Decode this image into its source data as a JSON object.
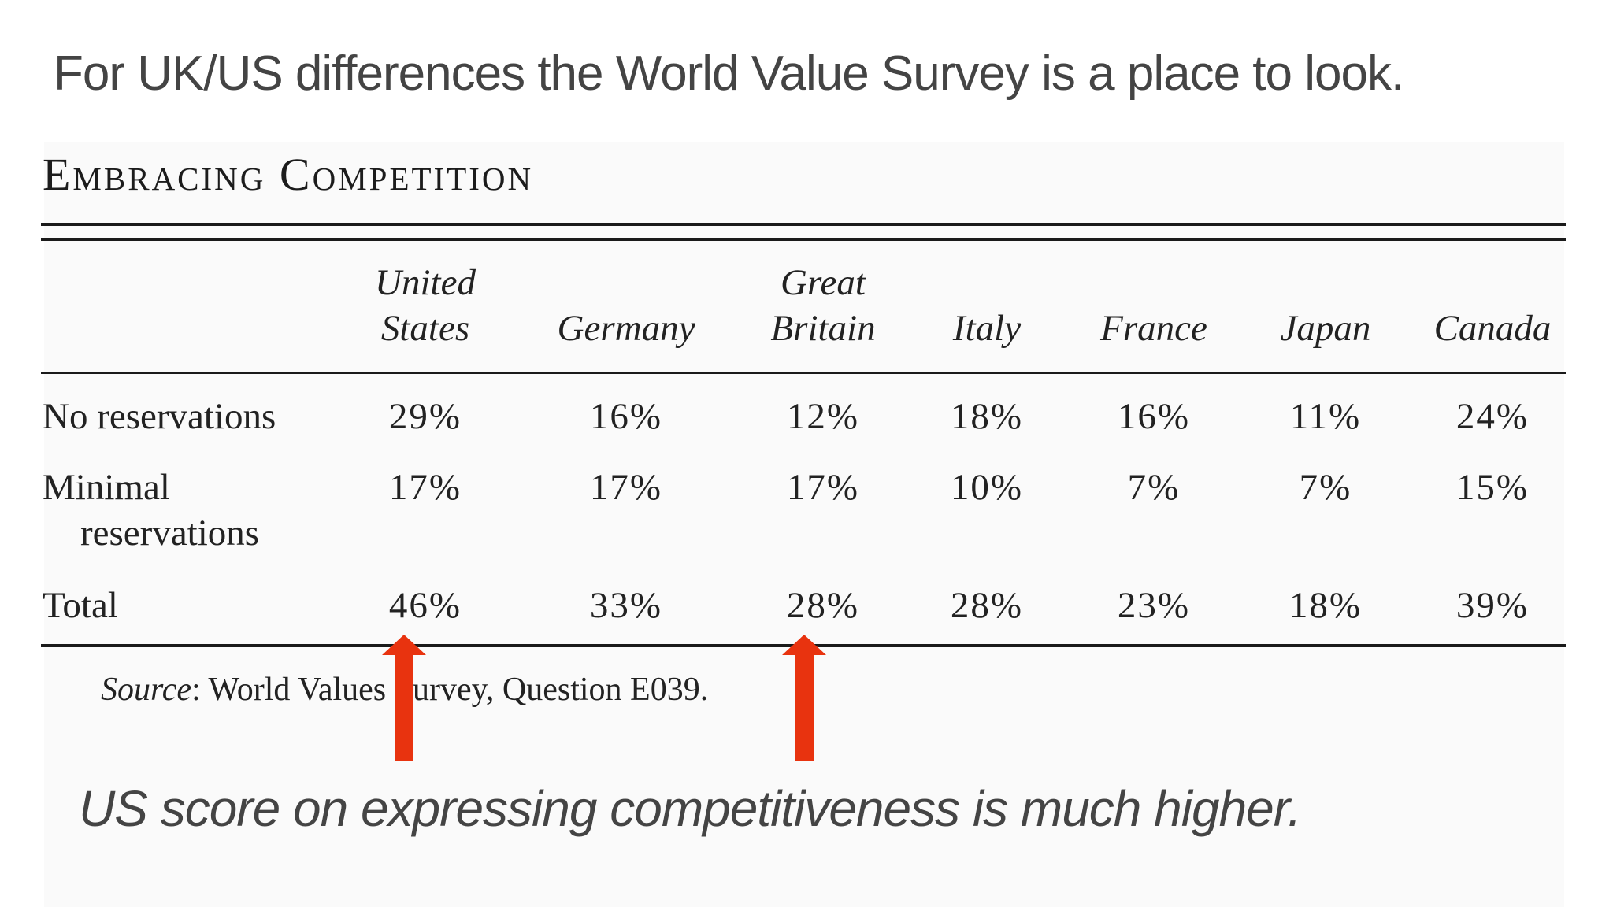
{
  "slide": {
    "title": "For UK/US differences the World Value Survey is a place to look.",
    "caption": "US score on expressing competitiveness is much higher."
  },
  "table": {
    "title": "Embracing Competition",
    "columns": [
      {
        "line1": "United",
        "line2": "States"
      },
      {
        "line1": "",
        "line2": "Germany"
      },
      {
        "line1": "Great",
        "line2": "Britain"
      },
      {
        "line1": "",
        "line2": "Italy"
      },
      {
        "line1": "",
        "line2": "France"
      },
      {
        "line1": "",
        "line2": "Japan"
      },
      {
        "line1": "",
        "line2": "Canada"
      }
    ],
    "rows": [
      {
        "label": "No reservations",
        "label_cont": "",
        "values": [
          "29%",
          "16%",
          "12%",
          "18%",
          "16%",
          "11%",
          "24%"
        ]
      },
      {
        "label": "Minimal",
        "label_cont": "reservations",
        "values": [
          "17%",
          "17%",
          "17%",
          "10%",
          "7%",
          "7%",
          "15%"
        ]
      },
      {
        "label": "Total",
        "label_cont": "",
        "values": [
          "46%",
          "33%",
          "28%",
          "28%",
          "23%",
          "18%",
          "39%"
        ]
      }
    ],
    "source_label": "Source",
    "source_text": ": World Values Survey, Question E039."
  },
  "annotations": {
    "arrow_color": "#e8330f",
    "arrow_icon": "up-arrow-icon",
    "highlighted_columns": [
      "United States",
      "Great Britain"
    ]
  }
}
